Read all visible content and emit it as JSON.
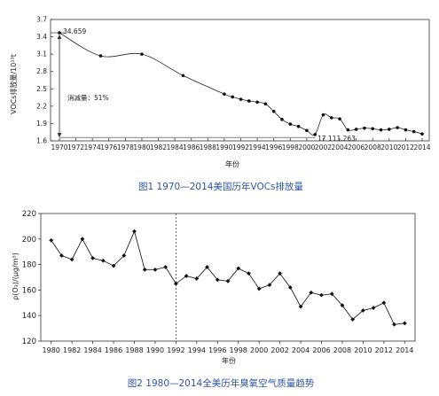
{
  "chart_data": [
    {
      "type": "line",
      "caption": "图1 1970—2014美国历年VOCs排放量",
      "xlabel": "年份",
      "ylabel": "VOCs排放量/10¹³t",
      "xlim": [
        1970,
        2014
      ],
      "ylim": [
        1.6,
        3.7
      ],
      "xticks": [
        "1970",
        "1972",
        "1974",
        "1976",
        "1978",
        "1980",
        "1982",
        "1984",
        "1986",
        "1988",
        "1990",
        "1992",
        "1994",
        "1996",
        "1998",
        "2000",
        "2002",
        "2004",
        "2006",
        "2008",
        "2010",
        "2012",
        "2014"
      ],
      "yticks": [
        "1.6",
        "1.9",
        "2.2",
        "2.5",
        "2.8",
        "3.1",
        "3.4",
        "3.7"
      ],
      "annotations": {
        "start_value": "34.659",
        "end_value": "17 111.263",
        "reduction": "消减量：51%"
      },
      "series": [
        {
          "x": [
            1970,
            1975,
            1980,
            1985,
            1990,
            1991,
            1992,
            1993,
            1994,
            1995,
            1996,
            1997,
            1998,
            1999,
            2000,
            2001,
            2002,
            2003,
            2004,
            2005,
            2006,
            2007,
            2008,
            2009,
            2010,
            2011,
            2012,
            2013,
            2014
          ],
          "values": [
            3.47,
            3.07,
            3.1,
            2.73,
            2.41,
            2.36,
            2.32,
            2.29,
            2.27,
            2.24,
            2.11,
            1.97,
            1.89,
            1.85,
            1.78,
            1.71,
            2.05,
            2.0,
            1.98,
            1.79,
            1.8,
            1.82,
            1.81,
            1.79,
            1.8,
            1.83,
            1.79,
            1.76,
            1.72
          ]
        }
      ]
    },
    {
      "type": "line",
      "caption": "图2 1980—2014全美历年臭氧空气质量趋势",
      "xlabel": "年份",
      "ylabel": "ρ(O₃)/(μg/m³)",
      "xlim": [
        1979,
        2015
      ],
      "ylim": [
        120,
        220
      ],
      "xticks": [
        "1980",
        "1982",
        "1984",
        "1986",
        "1988",
        "1990",
        "1992",
        "1994",
        "1996",
        "1998",
        "2000",
        "2002",
        "2004",
        "2006",
        "2008",
        "2010",
        "2012",
        "2014"
      ],
      "yticks": [
        "120",
        "140",
        "160",
        "180",
        "200",
        "220"
      ],
      "reference_line_x": 1992,
      "series": [
        {
          "x": [
            1980,
            1981,
            1982,
            1983,
            1984,
            1985,
            1986,
            1987,
            1988,
            1989,
            1990,
            1991,
            1992,
            1993,
            1994,
            1995,
            1996,
            1997,
            1998,
            1999,
            2000,
            2001,
            2002,
            2003,
            2004,
            2005,
            2006,
            2007,
            2008,
            2009,
            2010,
            2011,
            2012,
            2013,
            2014
          ],
          "values": [
            199,
            187,
            184,
            200,
            185,
            183,
            179,
            187,
            206,
            176,
            176,
            178,
            165,
            171,
            169,
            178,
            168,
            167,
            177,
            173,
            161,
            164,
            173,
            162,
            147,
            158,
            156,
            157,
            148,
            137,
            144,
            146,
            150,
            133,
            134
          ]
        }
      ]
    }
  ]
}
